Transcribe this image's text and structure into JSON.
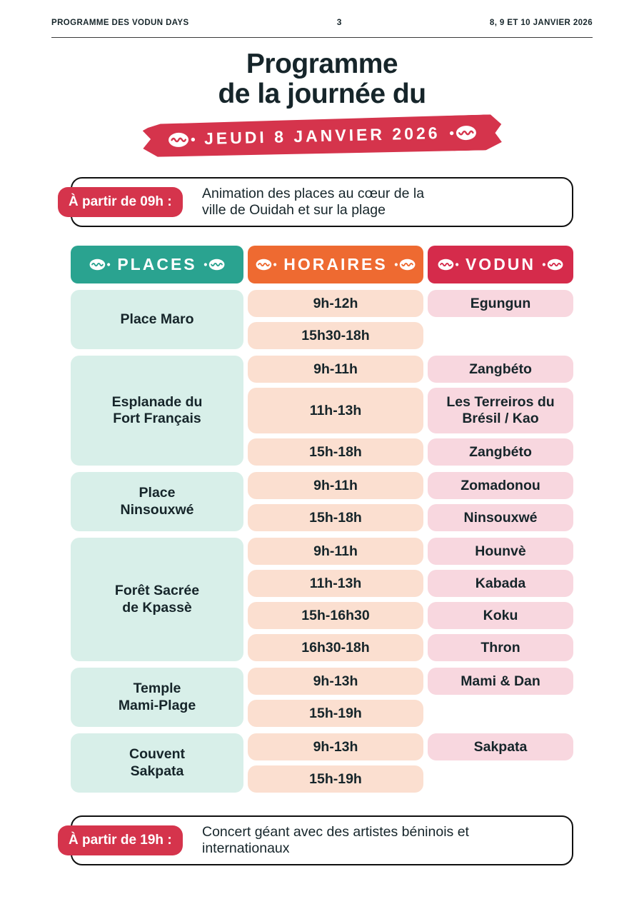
{
  "header": {
    "left": "PROGRAMME DES VODUN DAYS",
    "page_number": "3",
    "right": "8, 9 ET 10 JANVIER 2026"
  },
  "title": {
    "line1": "Programme",
    "line2": "de la journée du"
  },
  "banner": {
    "label": "JEUDI 8 JANVIER 2026"
  },
  "notes": {
    "morning": {
      "badge": "À partir de 09h :",
      "text": "Animation des places au cœur de la\nville de Ouidah et sur la plage"
    },
    "evening": {
      "badge": "À partir de 19h :",
      "text": "Concert géant avec des artistes béninois et\ninternationaux"
    }
  },
  "table": {
    "headers": [
      {
        "label": "PLACES"
      },
      {
        "label": "HORAIRES"
      },
      {
        "label": "VODUN"
      }
    ],
    "groups": [
      {
        "place": "Place Maro",
        "rows": [
          {
            "time": "9h-12h"
          },
          {
            "time": "15h30-18h"
          }
        ],
        "vodun_span": "Egungun"
      },
      {
        "place": "Esplanade du\nFort Français",
        "rows": [
          {
            "time": "9h-11h",
            "vodun": "Zangbéto"
          },
          {
            "time": "11h-13h",
            "vodun": "Les Terreiros du\nBrésil / Kao",
            "tall": true
          },
          {
            "time": "15h-18h",
            "vodun": "Zangbéto"
          }
        ]
      },
      {
        "place": "Place\nNinsouxwé",
        "rows": [
          {
            "time": "9h-11h",
            "vodun": "Zomadonou"
          },
          {
            "time": "15h-18h",
            "vodun": "Ninsouxwé"
          }
        ]
      },
      {
        "place": "Forêt Sacrée\nde Kpassè",
        "rows": [
          {
            "time": "9h-11h",
            "vodun": "Hounvè"
          },
          {
            "time": "11h-13h",
            "vodun": "Kabada"
          },
          {
            "time": "15h-16h30",
            "vodun": "Koku"
          },
          {
            "time": "16h30-18h",
            "vodun": "Thron"
          }
        ]
      },
      {
        "place": "Temple\nMami-Plage",
        "rows": [
          {
            "time": "9h-13h"
          },
          {
            "time": "15h-19h"
          }
        ],
        "vodun_span": "Mami & Dan"
      },
      {
        "place": "Couvent\nSakpata",
        "rows": [
          {
            "time": "9h-13h"
          },
          {
            "time": "15h-19h"
          }
        ],
        "vodun_span": "Sakpata"
      }
    ]
  },
  "colors": {
    "red": "#d5344c",
    "teal": "#2aa390",
    "orange": "#ee6a31",
    "vodun_red": "#d52b4b",
    "mint": "#d8efe9",
    "peach": "#fbdfd0",
    "pink": "#f8d7df",
    "ink": "#16252a"
  },
  "icons": {
    "cowrie": "cowrie-shell-icon"
  }
}
